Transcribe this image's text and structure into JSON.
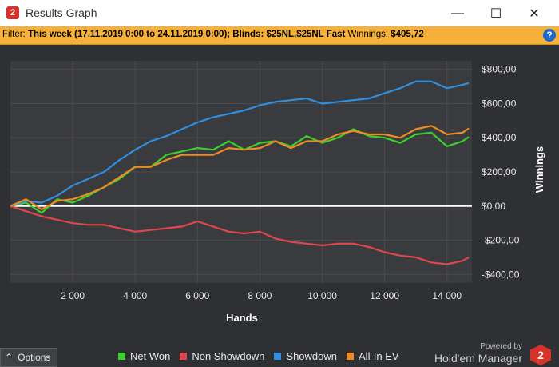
{
  "window": {
    "app_icon_text": "2",
    "title": "Results Graph",
    "minimize_icon": "minimize-icon",
    "maximize_icon": "maximize-icon",
    "close_icon": "close-icon"
  },
  "filter": {
    "prefix": "Filter:",
    "text": "This week (17.11.2019 0:00 to 24.11.2019 0:00); Blinds: $25NL,$25NL Fast",
    "winnings_label": "Winnings:",
    "winnings_value": "$405,72",
    "help_icon_text": "?"
  },
  "options": {
    "label": "Options",
    "icon": "caret-up-icon"
  },
  "legend": [
    {
      "label": "Net Won",
      "color": "#3ad12f"
    },
    {
      "label": "Non Showdown",
      "color": "#e0474c"
    },
    {
      "label": "Showdown",
      "color": "#2f8fe0"
    },
    {
      "label": "All-In EV",
      "color": "#f08a24"
    }
  ],
  "branding": {
    "powered": "Powered by",
    "name": "Hold'em Manager",
    "logo_text": "2"
  },
  "chart_data": {
    "type": "line",
    "xlabel": "Hands",
    "ylabel": "Winnings",
    "xlim": [
      0,
      14800
    ],
    "ylim": [
      -450,
      850
    ],
    "x_ticks": [
      2000,
      4000,
      6000,
      8000,
      10000,
      12000,
      14000
    ],
    "x_tick_labels": [
      "2 000",
      "4 000",
      "6 000",
      "8 000",
      "10 000",
      "12 000",
      "14 000"
    ],
    "y_ticks": [
      800,
      600,
      400,
      200,
      0,
      -200,
      -400
    ],
    "y_tick_labels": [
      "$800,00",
      "$600,00",
      "$400,00",
      "$200,00",
      "$0,00",
      "-$200,00",
      "-$400,00"
    ],
    "grid": true,
    "legend_position": "bottom",
    "zero_line_color": "#ffffff",
    "series": [
      {
        "name": "Net Won",
        "color": "#3ad12f",
        "x": [
          0,
          500,
          1000,
          1500,
          2000,
          2500,
          3000,
          3500,
          4000,
          4500,
          5000,
          5500,
          6000,
          6500,
          7000,
          7500,
          8000,
          8500,
          9000,
          9500,
          10000,
          10500,
          11000,
          11500,
          12000,
          12500,
          13000,
          13500,
          14000,
          14500,
          14700
        ],
        "y": [
          0,
          20,
          -40,
          40,
          20,
          60,
          110,
          160,
          230,
          230,
          300,
          320,
          340,
          330,
          380,
          330,
          370,
          380,
          350,
          410,
          370,
          400,
          450,
          410,
          400,
          370,
          420,
          430,
          350,
          380,
          405
        ]
      },
      {
        "name": "Non Showdown",
        "color": "#e0474c",
        "x": [
          0,
          500,
          1000,
          1500,
          2000,
          2500,
          3000,
          3500,
          4000,
          4500,
          5000,
          5500,
          6000,
          6500,
          7000,
          7500,
          8000,
          8500,
          9000,
          9500,
          10000,
          10500,
          11000,
          11500,
          12000,
          12500,
          13000,
          13500,
          14000,
          14500,
          14700
        ],
        "y": [
          0,
          -30,
          -60,
          -80,
          -100,
          -110,
          -110,
          -130,
          -150,
          -140,
          -130,
          -120,
          -90,
          -120,
          -150,
          -160,
          -150,
          -190,
          -210,
          -220,
          -230,
          -220,
          -220,
          -240,
          -270,
          -290,
          -300,
          -330,
          -340,
          -320,
          -300
        ]
      },
      {
        "name": "Showdown",
        "color": "#2f8fe0",
        "x": [
          0,
          500,
          1000,
          1500,
          2000,
          2500,
          3000,
          3500,
          4000,
          4500,
          5000,
          5500,
          6000,
          6500,
          7000,
          7500,
          8000,
          8500,
          9000,
          9500,
          10000,
          10500,
          11000,
          11500,
          12000,
          12500,
          13000,
          13500,
          14000,
          14500,
          14700
        ],
        "y": [
          0,
          30,
          20,
          60,
          120,
          160,
          200,
          270,
          330,
          380,
          410,
          450,
          490,
          520,
          540,
          560,
          590,
          610,
          620,
          630,
          600,
          610,
          620,
          630,
          660,
          690,
          730,
          730,
          690,
          710,
          720
        ]
      },
      {
        "name": "All-In EV",
        "color": "#f08a24",
        "x": [
          0,
          500,
          1000,
          1500,
          2000,
          2500,
          3000,
          3500,
          4000,
          4500,
          5000,
          5500,
          6000,
          6500,
          7000,
          7500,
          8000,
          8500,
          9000,
          9500,
          10000,
          10500,
          11000,
          11500,
          12000,
          12500,
          13000,
          13500,
          14000,
          14500,
          14700
        ],
        "y": [
          0,
          40,
          -20,
          30,
          40,
          70,
          110,
          170,
          230,
          230,
          270,
          300,
          300,
          300,
          340,
          330,
          340,
          380,
          340,
          380,
          380,
          420,
          440,
          420,
          420,
          400,
          450,
          470,
          420,
          430,
          455
        ]
      }
    ]
  }
}
